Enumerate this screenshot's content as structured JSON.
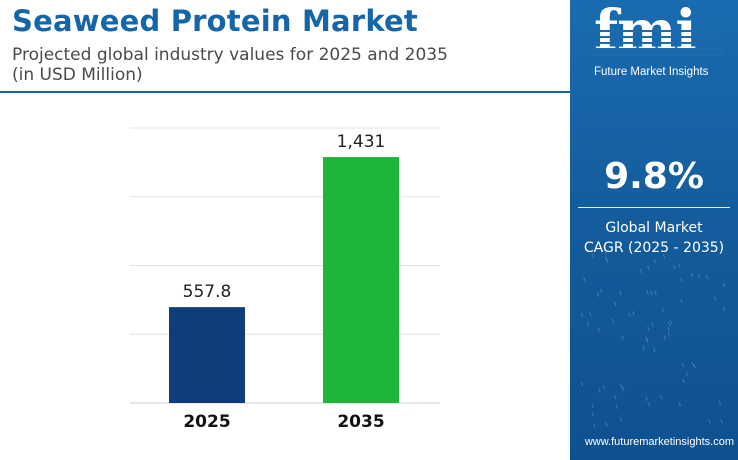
{
  "header": {
    "title": "Seaweed Protein Market",
    "subtitle_line1": "Projected global industry values for 2025 and 2035",
    "subtitle_line2": "(in USD Million)"
  },
  "brand": {
    "logo_text": "fmi",
    "tagline": "Future Market Insights",
    "website": "www.futuremarketinsights.com"
  },
  "stat": {
    "value": "9.8%",
    "label_line1": "Global Market",
    "label_line2": "CAGR (2025 - 2035)"
  },
  "colors": {
    "title": "#1566a8",
    "panel": "#135a99",
    "bar_2025": "#0e3d7a",
    "bar_2035": "#1fb53a"
  },
  "chart_data": {
    "type": "bar",
    "title": "",
    "xlabel": "",
    "ylabel": "",
    "categories": [
      "2025",
      "2035"
    ],
    "values": [
      557.8,
      1431
    ],
    "value_labels": [
      "557.8",
      "1,431"
    ],
    "bar_colors": [
      "#0e3d7a",
      "#1fb53a"
    ],
    "ylim": [
      0,
      1600
    ],
    "grid": true,
    "legend": "none"
  }
}
